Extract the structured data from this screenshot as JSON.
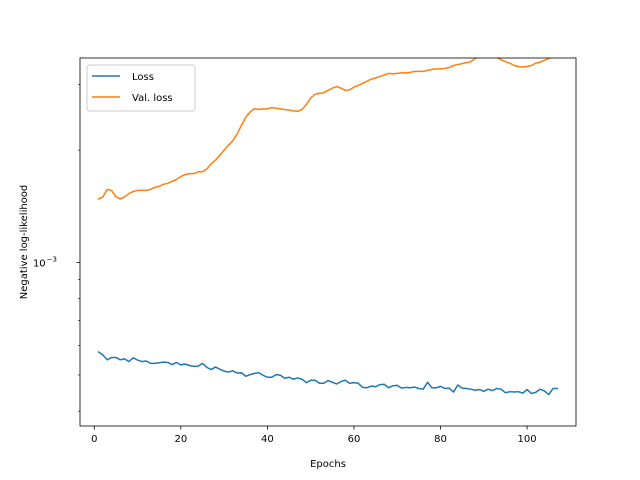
{
  "chart_data": {
    "type": "line",
    "title": "",
    "xlabel": "Epochs",
    "ylabel": "Negative log-likelihood",
    "xlim": [
      -3.3,
      111.3
    ],
    "ylim": [
      0.000365,
      0.00353
    ],
    "yscale": "log",
    "grid": false,
    "legend_position": "top-left",
    "x_ticks": [
      0,
      20,
      40,
      60,
      80,
      100
    ],
    "x_tick_labels": [
      "0",
      "20",
      "40",
      "60",
      "80",
      "100"
    ],
    "y_ticks": [
      0.001
    ],
    "y_tick_labels": [
      "10",
      "−3"
    ],
    "series": [
      {
        "name": "Loss",
        "color": "#1f77b4",
        "x": [
          1,
          2,
          3,
          4,
          5,
          6,
          7,
          8,
          9,
          10,
          11,
          12,
          13,
          14,
          15,
          16,
          17,
          18,
          19,
          20,
          21,
          22,
          23,
          24,
          25,
          26,
          27,
          28,
          29,
          30,
          31,
          32,
          33,
          34,
          35,
          36,
          37,
          38,
          39,
          40,
          41,
          42,
          43,
          44,
          45,
          46,
          47,
          48,
          49,
          50,
          51,
          52,
          53,
          54,
          55,
          56,
          57,
          58,
          59,
          60,
          61,
          62,
          63,
          64,
          65,
          66,
          67,
          68,
          69,
          70,
          71,
          72,
          73,
          74,
          75,
          76,
          77,
          78,
          79,
          80,
          81,
          82,
          83,
          84,
          85,
          86,
          87,
          88,
          89,
          90,
          91,
          92,
          93,
          94,
          95,
          96,
          97,
          98,
          99,
          100,
          101,
          102,
          103,
          104,
          105,
          106,
          107
        ],
        "values": [
          0.000576,
          0.000565,
          0.000549,
          0.000557,
          0.000557,
          0.000549,
          0.000552,
          0.000543,
          0.000556,
          0.000548,
          0.000543,
          0.000545,
          0.000537,
          0.000537,
          0.000539,
          0.000541,
          0.00054,
          0.000533,
          0.00054,
          0.000532,
          0.000535,
          0.00053,
          0.000527,
          0.000528,
          0.000537,
          0.000524,
          0.000517,
          0.000525,
          0.000518,
          0.000512,
          0.000509,
          0.000513,
          0.000506,
          0.000507,
          0.000496,
          0.000501,
          0.000505,
          0.000507,
          0.000499,
          0.000493,
          0.000493,
          0.000501,
          0.000499,
          0.00049,
          0.000493,
          0.000487,
          0.000491,
          0.000487,
          0.000477,
          0.000484,
          0.000484,
          0.000475,
          0.000475,
          0.000483,
          0.000478,
          0.000473,
          0.00048,
          0.000484,
          0.000475,
          0.000477,
          0.000475,
          0.000463,
          0.000462,
          0.000467,
          0.000465,
          0.000471,
          0.000472,
          0.000462,
          0.000468,
          0.000469,
          0.000461,
          0.000463,
          0.000462,
          0.000464,
          0.00046,
          0.000458,
          0.000478,
          0.000462,
          0.000462,
          0.000466,
          0.00046,
          0.000461,
          0.00045,
          0.00047,
          0.000461,
          0.00046,
          0.000458,
          0.000455,
          0.000457,
          0.000452,
          0.000458,
          0.000454,
          0.00046,
          0.000458,
          0.000448,
          0.000451,
          0.00045,
          0.000451,
          0.000447,
          0.000457,
          0.000446,
          0.000449,
          0.000458,
          0.000453,
          0.000443,
          0.00046,
          0.00046
        ]
      },
      {
        "name": "Val. loss",
        "color": "#ff7f0e",
        "x": [
          1,
          2,
          3,
          4,
          5,
          6,
          7,
          8,
          9,
          10,
          11,
          12,
          13,
          14,
          15,
          16,
          17,
          18,
          19,
          20,
          21,
          22,
          23,
          24,
          25,
          26,
          27,
          28,
          29,
          30,
          31,
          32,
          33,
          34,
          35,
          36,
          37,
          38,
          39,
          40,
          41,
          42,
          43,
          44,
          45,
          46,
          47,
          48,
          49,
          50,
          51,
          52,
          53,
          54,
          55,
          56,
          57,
          58,
          59,
          60,
          61,
          62,
          63,
          64,
          65,
          66,
          67,
          68,
          69,
          70,
          71,
          72,
          73,
          74,
          75,
          76,
          77,
          78,
          79,
          80,
          81,
          82,
          83,
          84,
          85,
          86,
          87,
          88,
          89,
          90,
          91,
          92,
          93,
          94,
          95,
          96,
          97,
          98,
          99,
          100,
          101,
          102,
          103,
          104,
          105,
          106,
          107
        ],
        "values": [
          0.00148,
          0.0015,
          0.00157,
          0.00156,
          0.0015,
          0.00148,
          0.0015,
          0.00153,
          0.00155,
          0.00156,
          0.00156,
          0.00156,
          0.00157,
          0.00159,
          0.0016,
          0.00162,
          0.00163,
          0.00165,
          0.00167,
          0.0017,
          0.00172,
          0.00173,
          0.00173,
          0.00175,
          0.00175,
          0.00178,
          0.00184,
          0.00188,
          0.00194,
          0.002,
          0.00206,
          0.00212,
          0.00221,
          0.00233,
          0.00245,
          0.00253,
          0.00258,
          0.00257,
          0.00258,
          0.00258,
          0.0026,
          0.00259,
          0.00258,
          0.00257,
          0.00256,
          0.00255,
          0.00254,
          0.00257,
          0.00265,
          0.00276,
          0.00282,
          0.00284,
          0.00285,
          0.00289,
          0.00293,
          0.00296,
          0.00293,
          0.00289,
          0.0029,
          0.00295,
          0.00298,
          0.00302,
          0.00306,
          0.0031,
          0.00312,
          0.00315,
          0.00318,
          0.00321,
          0.0032,
          0.00321,
          0.00322,
          0.00322,
          0.00323,
          0.00325,
          0.00325,
          0.00325,
          0.00327,
          0.00329,
          0.0033,
          0.0033,
          0.00331,
          0.00333,
          0.00337,
          0.00339,
          0.00341,
          0.00343,
          0.00345,
          0.00352,
          0.00356,
          0.00356,
          0.00356,
          0.00356,
          0.00354,
          0.00349,
          0.00345,
          0.00342,
          0.00337,
          0.00335,
          0.00334,
          0.00335,
          0.00337,
          0.00342,
          0.00344,
          0.00348,
          0.00352,
          0.00355,
          0.00355
        ]
      }
    ]
  }
}
